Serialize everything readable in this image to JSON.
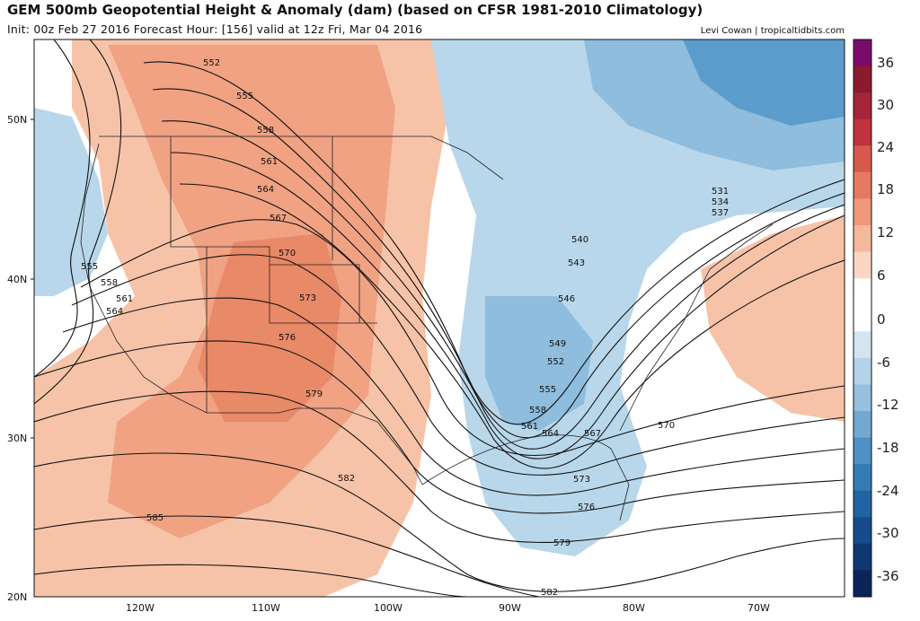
{
  "header": {
    "title": "GEM 500mb Geopotential Height & Anomaly (dam) (based on CFSR 1981-2010 Climatology)",
    "subtitle": "Init: 00z Feb 27 2016   Forecast Hour: [156]   valid at 12z Fri, Mar 04 2016",
    "credit": "Levi Cowan | tropicaltidbits.com"
  },
  "map": {
    "lat_labels": [
      "50N",
      "40N",
      "30N",
      "20N"
    ],
    "lon_labels": [
      "120W",
      "110W",
      "100W",
      "90W",
      "80W",
      "70W"
    ],
    "contour_labels": [
      "552",
      "555",
      "558",
      "561",
      "564",
      "567",
      "570",
      "573",
      "576",
      "579",
      "582",
      "585",
      "555",
      "558",
      "561",
      "564",
      "531",
      "534",
      "537",
      "540",
      "543",
      "546",
      "549",
      "552",
      "555",
      "558",
      "561",
      "564",
      "567",
      "570",
      "573",
      "576",
      "579",
      "582"
    ],
    "colors": {
      "warm": "#f4a582",
      "warm_strong": "#e8856a",
      "cool": "#a6cde6",
      "cool_strong": "#4a90c7",
      "land_line": "#222222"
    }
  },
  "colorbar": {
    "labels": [
      "36",
      "30",
      "24",
      "18",
      "12",
      "6",
      "0",
      "-6",
      "-12",
      "-18",
      "-24",
      "-30",
      "-36"
    ],
    "colors": [
      "#7a0b6b",
      "#8b1a2e",
      "#a32638",
      "#c1323f",
      "#d65a4c",
      "#e4795f",
      "#f0997a",
      "#f6b89c",
      "#fad6c3",
      "#ffffff",
      "#ffffff",
      "#d3e5f1",
      "#b5d3e8",
      "#96c0df",
      "#72a9d3",
      "#4f91c4",
      "#347bb6",
      "#2264a3",
      "#164c8a",
      "#0f3772",
      "#0a2459"
    ]
  }
}
